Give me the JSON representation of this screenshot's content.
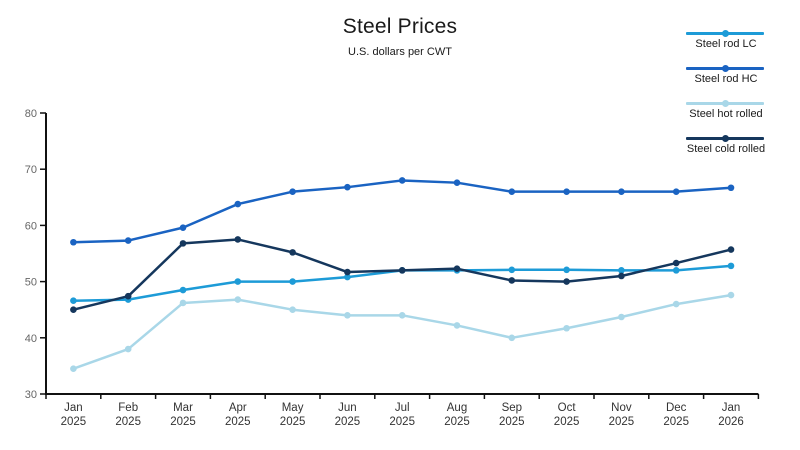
{
  "chart": {
    "title": "Steel Prices",
    "subtitle": "U.S. dollars per CWT"
  },
  "chart_data": {
    "type": "line",
    "title": "Steel Prices",
    "subtitle": "U.S. dollars per CWT",
    "categories": [
      "Jan 2025",
      "Feb 2025",
      "Mar 2025",
      "Apr 2025",
      "May 2025",
      "Jun 2025",
      "Jul 2025",
      "Aug 2025",
      "Sep 2025",
      "Oct 2025",
      "Nov 2025",
      "Dec 2025",
      "Jan 2026"
    ],
    "series": [
      {
        "name": "Steel rod LC",
        "color": "#1d9bd7",
        "values": [
          46.6,
          46.8,
          48.5,
          50.0,
          50.0,
          50.8,
          52.0,
          52.0,
          52.1,
          52.1,
          52.0,
          52.0,
          52.8
        ]
      },
      {
        "name": "Steel rod HC",
        "color": "#1a63c2",
        "values": [
          57.0,
          57.3,
          59.6,
          63.8,
          66.0,
          66.8,
          68.0,
          67.6,
          66.0,
          66.0,
          66.0,
          66.0,
          66.7
        ]
      },
      {
        "name": "Steel hot rolled",
        "color": "#a9d7e8",
        "values": [
          34.5,
          38.0,
          46.2,
          46.8,
          45.0,
          44.0,
          44.0,
          42.2,
          40.0,
          41.7,
          43.7,
          46.0,
          47.6
        ]
      },
      {
        "name": "Steel cold rolled",
        "color": "#15375d",
        "values": [
          45.0,
          47.4,
          56.8,
          57.5,
          55.2,
          51.7,
          52.0,
          52.3,
          50.2,
          50.0,
          51.0,
          53.3,
          55.7
        ]
      }
    ],
    "xlabel": "",
    "ylabel": "",
    "ylim": [
      30,
      80
    ],
    "yticks": [
      30,
      40,
      50,
      60,
      70,
      80
    ],
    "grid": false,
    "legend_position": "top-right",
    "axis_color": "#111111",
    "ytick_label_color": "#666666",
    "xtick_label_color": "#333333"
  }
}
